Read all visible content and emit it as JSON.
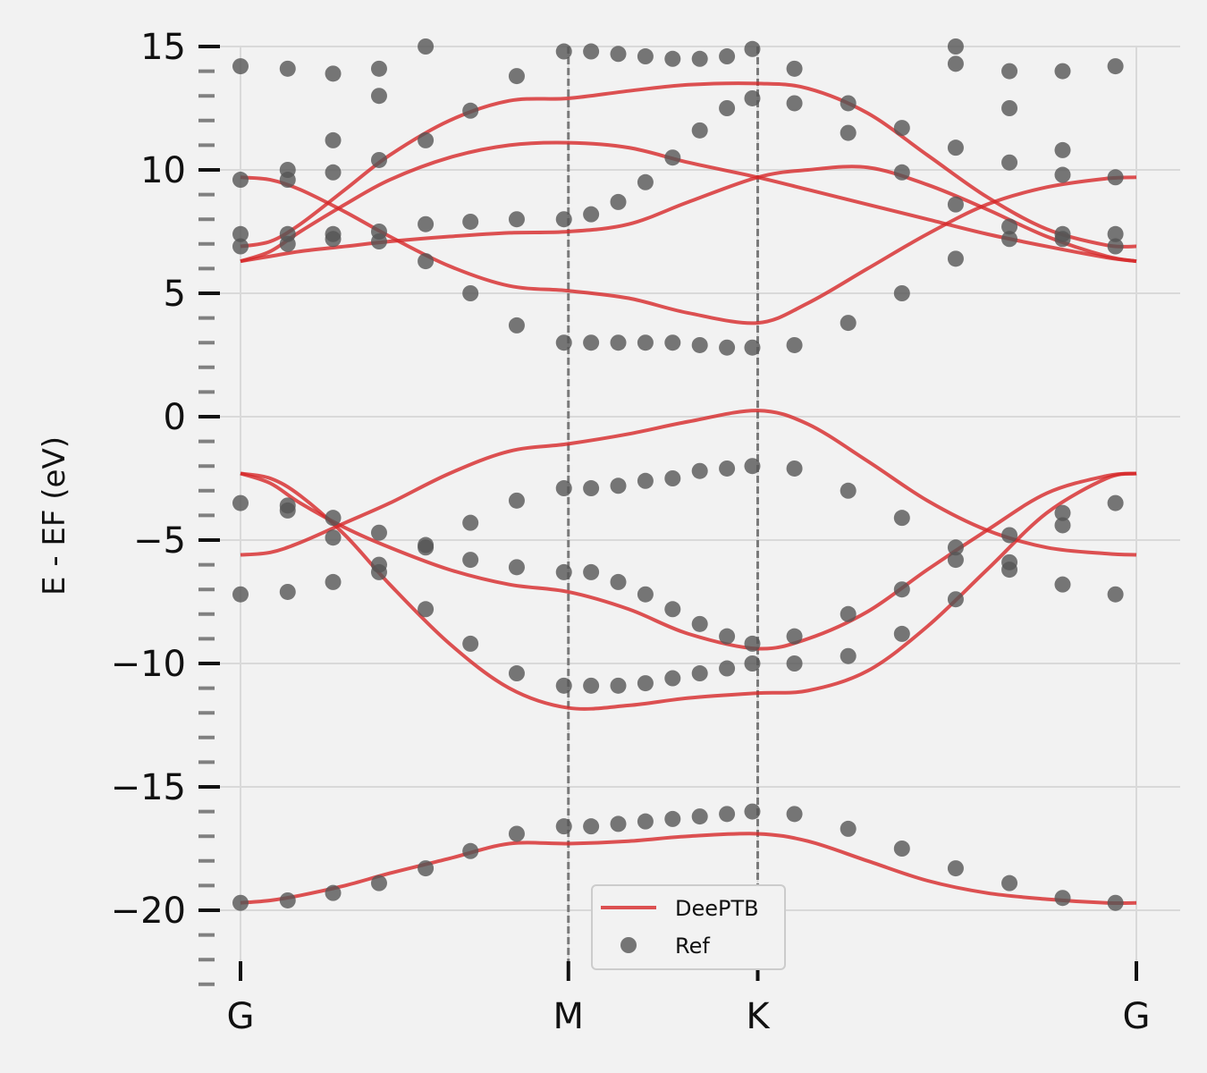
{
  "chart_data": {
    "type": "line",
    "title": "",
    "xlabel": "",
    "ylabel": "E - EF (eV)",
    "ylim": [
      -23,
      15
    ],
    "xlim": [
      0,
      3.0
    ],
    "grid": true,
    "legend_position": "bottom-center",
    "high_symmetry_points": [
      {
        "label": "G",
        "x": 0.0
      },
      {
        "label": "M",
        "x": 1.098
      },
      {
        "label": "K",
        "x": 1.732
      },
      {
        "label": "G",
        "x": 3.0
      }
    ],
    "y_ticks": [
      {
        "label": "15",
        "value": 15
      },
      {
        "label": "10",
        "value": 10
      },
      {
        "label": "5",
        "value": 5
      },
      {
        "label": "0",
        "value": 0
      },
      {
        "label": "−5",
        "value": -5
      },
      {
        "label": "−10",
        "value": -10
      },
      {
        "label": "−15",
        "value": -15
      },
      {
        "label": "−20",
        "value": -20
      }
    ],
    "colors": {
      "deeptb": "#d62728",
      "ref": "#555555",
      "background": "#f2f2f2",
      "grid": "#d9d9d9",
      "vline": "#7a7a7a"
    },
    "series": [
      {
        "name": "DeePTB",
        "style": "line",
        "bands": [
          {
            "x": [
              0,
              0.1,
              0.2,
              0.35,
              0.5,
              0.7,
              0.9,
              1.098,
              1.3,
              1.5,
              1.732,
              1.9,
              2.1,
              2.3,
              2.5,
              2.7,
              2.9,
              3.0
            ],
            "y": [
              -19.7,
              -19.6,
              -19.4,
              -19.0,
              -18.5,
              -17.9,
              -17.3,
              -17.3,
              -17.2,
              -17.0,
              -16.9,
              -17.2,
              -18.0,
              -18.8,
              -19.3,
              -19.55,
              -19.7,
              -19.7
            ]
          },
          {
            "x": [
              0,
              0.1,
              0.2,
              0.35,
              0.5,
              0.7,
              0.9,
              1.098,
              1.3,
              1.5,
              1.732,
              1.9,
              2.1,
              2.3,
              2.5,
              2.7,
              2.9,
              3.0
            ],
            "y": [
              -2.3,
              -2.5,
              -3.2,
              -4.8,
              -6.8,
              -9.2,
              -11.0,
              -11.8,
              -11.7,
              -11.4,
              -11.2,
              -11.1,
              -10.3,
              -8.5,
              -6.2,
              -3.9,
              -2.5,
              -2.3
            ]
          },
          {
            "x": [
              0,
              0.1,
              0.2,
              0.35,
              0.5,
              0.7,
              0.9,
              1.098,
              1.3,
              1.5,
              1.732,
              1.9,
              2.1,
              2.3,
              2.5,
              2.7,
              2.9,
              3.0
            ],
            "y": [
              -2.3,
              -2.7,
              -3.5,
              -4.5,
              -5.3,
              -6.2,
              -6.8,
              -7.1,
              -7.8,
              -8.8,
              -9.4,
              -9.0,
              -7.9,
              -6.2,
              -4.6,
              -3.1,
              -2.4,
              -2.3
            ]
          },
          {
            "x": [
              0,
              0.1,
              0.2,
              0.35,
              0.5,
              0.7,
              0.9,
              1.098,
              1.3,
              1.5,
              1.732,
              1.9,
              2.1,
              2.3,
              2.5,
              2.7,
              2.9,
              3.0
            ],
            "y": [
              -5.6,
              -5.5,
              -5.1,
              -4.3,
              -3.5,
              -2.3,
              -1.4,
              -1.1,
              -0.7,
              -0.2,
              0.25,
              -0.3,
              -1.8,
              -3.4,
              -4.6,
              -5.3,
              -5.55,
              -5.6
            ]
          },
          {
            "x": [
              0,
              0.1,
              0.2,
              0.35,
              0.5,
              0.7,
              0.9,
              1.098,
              1.3,
              1.5,
              1.732,
              1.9,
              2.1,
              2.3,
              2.5,
              2.7,
              2.9,
              3.0
            ],
            "y": [
              9.7,
              9.6,
              9.2,
              8.3,
              7.3,
              6.1,
              5.3,
              5.1,
              4.8,
              4.2,
              3.8,
              4.6,
              6.0,
              7.4,
              8.6,
              9.3,
              9.65,
              9.7
            ]
          },
          {
            "x": [
              0,
              0.1,
              0.2,
              0.35,
              0.5,
              0.7,
              0.9,
              1.098,
              1.3,
              1.5,
              1.732,
              1.9,
              2.1,
              2.3,
              2.5,
              2.7,
              2.9,
              3.0
            ],
            "y": [
              6.3,
              6.5,
              6.7,
              6.9,
              7.1,
              7.3,
              7.45,
              7.5,
              7.8,
              8.7,
              9.7,
              10.0,
              10.1,
              9.4,
              8.4,
              7.3,
              6.5,
              6.3
            ]
          },
          {
            "x": [
              0,
              0.1,
              0.2,
              0.35,
              0.5,
              0.7,
              0.9,
              1.098,
              1.3,
              1.5,
              1.732,
              1.9,
              2.1,
              2.3,
              2.5,
              2.7,
              2.9,
              3.0
            ],
            "y": [
              6.3,
              6.7,
              7.5,
              8.6,
              9.6,
              10.5,
              11.0,
              11.1,
              10.9,
              10.3,
              9.7,
              9.2,
              8.6,
              8.0,
              7.4,
              6.9,
              6.45,
              6.3
            ]
          },
          {
            "x": [
              0,
              0.1,
              0.2,
              0.35,
              0.5,
              0.7,
              0.9,
              1.098,
              1.3,
              1.5,
              1.732,
              1.9,
              2.1,
              2.3,
              2.5,
              2.7,
              2.9,
              3.0
            ],
            "y": [
              6.9,
              7.1,
              7.8,
              9.2,
              10.6,
              12.0,
              12.8,
              12.9,
              13.2,
              13.45,
              13.5,
              13.3,
              12.3,
              10.6,
              8.9,
              7.6,
              6.95,
              6.9
            ]
          }
        ]
      },
      {
        "name": "Ref",
        "style": "scatter",
        "points": [
          [
            0.0,
            14.2
          ],
          [
            0.0,
            9.6
          ],
          [
            0.0,
            7.4
          ],
          [
            0.0,
            6.9
          ],
          [
            0.0,
            -3.5
          ],
          [
            0.0,
            -7.2
          ],
          [
            0.0,
            -19.7
          ],
          [
            0.158,
            14.1
          ],
          [
            0.158,
            10.0
          ],
          [
            0.158,
            9.6
          ],
          [
            0.158,
            7.4
          ],
          [
            0.158,
            7.0
          ],
          [
            0.158,
            -3.6
          ],
          [
            0.158,
            -3.8
          ],
          [
            0.158,
            -7.1
          ],
          [
            0.158,
            -19.6
          ],
          [
            0.31,
            13.9
          ],
          [
            0.31,
            11.2
          ],
          [
            0.31,
            9.9
          ],
          [
            0.31,
            7.4
          ],
          [
            0.31,
            7.2
          ],
          [
            0.31,
            -4.1
          ],
          [
            0.31,
            -4.9
          ],
          [
            0.31,
            -6.7
          ],
          [
            0.31,
            -19.3
          ],
          [
            0.464,
            14.1
          ],
          [
            0.464,
            13.0
          ],
          [
            0.464,
            10.4
          ],
          [
            0.464,
            7.5
          ],
          [
            0.464,
            7.1
          ],
          [
            0.464,
            -4.7
          ],
          [
            0.464,
            -6.0
          ],
          [
            0.464,
            -6.3
          ],
          [
            0.464,
            -18.9
          ],
          [
            0.62,
            15.0
          ],
          [
            0.62,
            11.2
          ],
          [
            0.62,
            7.8
          ],
          [
            0.62,
            6.3
          ],
          [
            0.62,
            -5.3
          ],
          [
            0.62,
            -5.2
          ],
          [
            0.62,
            -7.8
          ],
          [
            0.62,
            -18.3
          ],
          [
            0.77,
            12.4
          ],
          [
            0.77,
            7.9
          ],
          [
            0.77,
            5.0
          ],
          [
            0.77,
            -4.3
          ],
          [
            0.77,
            -5.8
          ],
          [
            0.77,
            -9.2
          ],
          [
            0.77,
            -17.6
          ],
          [
            0.925,
            13.8
          ],
          [
            0.925,
            8.0
          ],
          [
            0.925,
            3.7
          ],
          [
            0.925,
            -3.4
          ],
          [
            0.925,
            -6.1
          ],
          [
            0.925,
            -10.4
          ],
          [
            0.925,
            -16.9
          ],
          [
            1.083,
            14.8
          ],
          [
            1.083,
            8.0
          ],
          [
            1.083,
            3.0
          ],
          [
            1.083,
            -2.9
          ],
          [
            1.083,
            -6.3
          ],
          [
            1.083,
            -10.9
          ],
          [
            1.083,
            -16.6
          ],
          [
            1.174,
            14.8
          ],
          [
            1.174,
            8.2
          ],
          [
            1.174,
            3.0
          ],
          [
            1.174,
            -2.9
          ],
          [
            1.174,
            -6.3
          ],
          [
            1.174,
            -10.9
          ],
          [
            1.174,
            -16.6
          ],
          [
            1.265,
            14.7
          ],
          [
            1.265,
            8.7
          ],
          [
            1.265,
            3.0
          ],
          [
            1.265,
            -2.8
          ],
          [
            1.265,
            -6.7
          ],
          [
            1.265,
            -10.9
          ],
          [
            1.265,
            -16.5
          ],
          [
            1.356,
            14.6
          ],
          [
            1.356,
            9.5
          ],
          [
            1.356,
            3.0
          ],
          [
            1.356,
            -2.6
          ],
          [
            1.356,
            -7.2
          ],
          [
            1.356,
            -10.8
          ],
          [
            1.356,
            -16.4
          ],
          [
            1.447,
            14.5
          ],
          [
            1.447,
            10.5
          ],
          [
            1.447,
            3.0
          ],
          [
            1.447,
            -2.5
          ],
          [
            1.447,
            -7.8
          ],
          [
            1.447,
            -10.6
          ],
          [
            1.447,
            -16.3
          ],
          [
            1.538,
            14.5
          ],
          [
            1.538,
            11.6
          ],
          [
            1.538,
            2.9
          ],
          [
            1.538,
            -2.2
          ],
          [
            1.538,
            -8.4
          ],
          [
            1.538,
            -10.4
          ],
          [
            1.538,
            -16.2
          ],
          [
            1.629,
            14.6
          ],
          [
            1.629,
            12.5
          ],
          [
            1.629,
            2.8
          ],
          [
            1.629,
            -2.1
          ],
          [
            1.629,
            -8.9
          ],
          [
            1.629,
            -10.2
          ],
          [
            1.629,
            -16.1
          ],
          [
            1.714,
            14.9
          ],
          [
            1.714,
            12.9
          ],
          [
            1.714,
            2.8
          ],
          [
            1.714,
            -2.0
          ],
          [
            1.714,
            -9.2
          ],
          [
            1.714,
            -10.0
          ],
          [
            1.714,
            -16.0
          ],
          [
            1.855,
            14.1
          ],
          [
            1.855,
            12.7
          ],
          [
            1.855,
            2.9
          ],
          [
            1.855,
            -2.1
          ],
          [
            1.855,
            -8.9
          ],
          [
            1.855,
            -10.0
          ],
          [
            1.855,
            -16.1
          ],
          [
            2.035,
            12.7
          ],
          [
            2.035,
            11.5
          ],
          [
            2.035,
            3.8
          ],
          [
            2.035,
            -3.0
          ],
          [
            2.035,
            -8.0
          ],
          [
            2.035,
            -9.7
          ],
          [
            2.035,
            -16.7
          ],
          [
            2.215,
            11.7
          ],
          [
            2.215,
            9.9
          ],
          [
            2.215,
            5.0
          ],
          [
            2.215,
            -4.1
          ],
          [
            2.215,
            -7.0
          ],
          [
            2.215,
            -8.8
          ],
          [
            2.215,
            -17.5
          ],
          [
            2.395,
            15.0
          ],
          [
            2.395,
            14.3
          ],
          [
            2.395,
            10.9
          ],
          [
            2.395,
            8.6
          ],
          [
            2.395,
            6.4
          ],
          [
            2.395,
            -5.3
          ],
          [
            2.395,
            -5.8
          ],
          [
            2.395,
            -7.4
          ],
          [
            2.395,
            -18.3
          ],
          [
            2.575,
            14.0
          ],
          [
            2.575,
            12.5
          ],
          [
            2.575,
            10.3
          ],
          [
            2.575,
            7.7
          ],
          [
            2.575,
            7.2
          ],
          [
            2.575,
            -4.8
          ],
          [
            2.575,
            -5.9
          ],
          [
            2.575,
            -6.2
          ],
          [
            2.575,
            -18.9
          ],
          [
            2.753,
            14.0
          ],
          [
            2.753,
            10.8
          ],
          [
            2.753,
            9.8
          ],
          [
            2.753,
            7.4
          ],
          [
            2.753,
            7.2
          ],
          [
            2.753,
            -3.9
          ],
          [
            2.753,
            -4.4
          ],
          [
            2.753,
            -6.8
          ],
          [
            2.753,
            -19.5
          ],
          [
            2.93,
            14.2
          ],
          [
            2.93,
            9.7
          ],
          [
            2.93,
            7.4
          ],
          [
            2.93,
            6.9
          ],
          [
            2.93,
            -3.5
          ],
          [
            2.93,
            -7.2
          ],
          [
            2.93,
            -19.7
          ]
        ]
      }
    ]
  },
  "legend": {
    "items": [
      {
        "label": "DeePTB",
        "kind": "line"
      },
      {
        "label": "Ref",
        "kind": "marker"
      }
    ]
  }
}
